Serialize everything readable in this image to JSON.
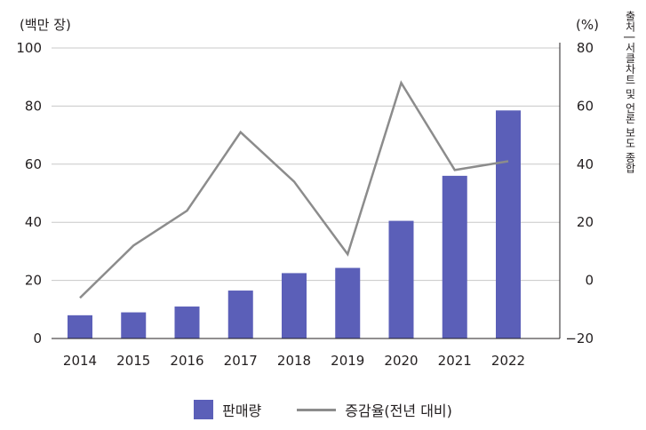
{
  "chart_data": {
    "type": "bar",
    "title": "",
    "categories": [
      "2014",
      "2015",
      "2016",
      "2017",
      "2018",
      "2019",
      "2020",
      "2021",
      "2022"
    ],
    "series": [
      {
        "name": "판매량",
        "type": "bar",
        "axis": "left",
        "values": [
          8.0,
          9.0,
          11.0,
          16.5,
          22.5,
          24.3,
          40.5,
          56.0,
          78.5
        ]
      },
      {
        "name": "증감율(전년 대비)",
        "type": "line",
        "axis": "right",
        "values": [
          -6,
          12,
          24,
          51,
          34,
          9,
          68,
          38,
          41
        ]
      }
    ],
    "y_left": {
      "unit": "(백만 장)",
      "ylim": [
        0,
        100
      ],
      "ticks": [
        "0",
        "20",
        "40",
        "60",
        "80",
        "100"
      ]
    },
    "y_right": {
      "unit": "(%)",
      "ylim": [
        -20,
        80
      ],
      "ticks": [
        "−20",
        "0",
        "20",
        "40",
        "60",
        "80"
      ]
    },
    "grid": true,
    "legend_position": "bottom-center",
    "colors": {
      "bar": "#5b5fb8",
      "line": "#8c8c8c",
      "grid": "#c8c8c8",
      "axis": "#231f20"
    }
  },
  "source_note": "출처 | 서클차트 및 언론 보도 종합"
}
